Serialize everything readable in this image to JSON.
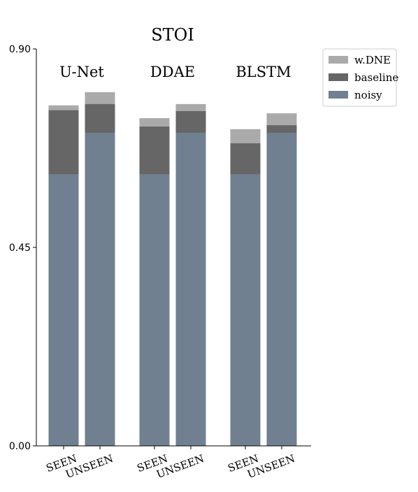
{
  "chart_data": {
    "type": "bar",
    "title": "STOI",
    "groups": [
      "U-Net",
      "DDAE",
      "BLSTM"
    ],
    "categories": [
      "SEEN",
      "UNSEEN",
      "SEEN",
      "UNSEEN",
      "SEEN",
      "UNSEEN"
    ],
    "series": [
      {
        "name": "w.DNE",
        "color": "#aaaaaa",
        "values": [
          0.772,
          0.802,
          0.743,
          0.775,
          0.718,
          0.754
        ]
      },
      {
        "name": "baseline",
        "color": "#666666",
        "values": [
          0.761,
          0.775,
          0.724,
          0.759,
          0.686,
          0.727
        ]
      },
      {
        "name": "noisy",
        "color": "#708090",
        "values": [
          0.616,
          0.71,
          0.616,
          0.71,
          0.616,
          0.71
        ]
      }
    ],
    "ylim": [
      0,
      0.9
    ],
    "yticks": [
      {
        "value": 0,
        "label": "0.00"
      },
      {
        "value": 0.45,
        "label": "0.45"
      },
      {
        "value": 0.9,
        "label": "0.90"
      }
    ],
    "legend": "upper right"
  }
}
